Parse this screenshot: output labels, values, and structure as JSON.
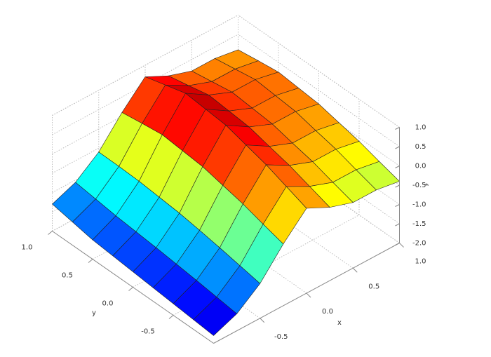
{
  "chart_data": {
    "type": "surface",
    "x_label": "x",
    "y_label": "y",
    "z_label": "f",
    "x": [
      -1,
      -0.75,
      -0.5,
      -0.25,
      0,
      0.25,
      0.5,
      0.75,
      1
    ],
    "y": [
      -1,
      -0.75,
      -0.5,
      -0.25,
      0,
      0.25,
      0.5,
      0.75,
      1
    ],
    "z": [
      [
        -1.8,
        -1.56,
        -1.1,
        -0.4,
        0.2,
        -0.1,
        -0.3,
        -0.3,
        -0.4
      ],
      [
        -1.75,
        -1.49,
        -1.0,
        -0.25,
        0.4,
        0.08,
        -0.14,
        -0.14,
        -0.25
      ],
      [
        -1.7,
        -1.42,
        -0.9,
        -0.09,
        0.6,
        0.26,
        0.03,
        0.03,
        -0.09
      ],
      [
        -1.65,
        -1.36,
        -0.81,
        0.03,
        0.75,
        0.39,
        0.15,
        0.15,
        0.03
      ],
      [
        -1.6,
        -1.3,
        -0.73,
        0.15,
        0.9,
        0.53,
        0.28,
        0.28,
        0.15
      ],
      [
        -1.55,
        -1.25,
        -0.68,
        0.2,
        0.95,
        0.58,
        0.33,
        0.33,
        0.2
      ],
      [
        -1.5,
        -1.2,
        -0.63,
        0.25,
        1.0,
        0.63,
        0.38,
        0.38,
        0.25
      ],
      [
        -1.4,
        -1.13,
        -0.61,
        0.18,
        0.85,
        0.51,
        0.29,
        0.29,
        0.18
      ],
      [
        -1.3,
        -1.06,
        -0.6,
        0.1,
        0.7,
        0.4,
        0.2,
        0.2,
        0.1
      ]
    ],
    "xlim": [
      -1,
      1
    ],
    "ylim": [
      -1,
      1
    ],
    "zlim": [
      -2,
      1
    ],
    "xticks": [
      -0.5,
      {
        "value": 0,
        "label": "0.0"
      },
      0.5,
      {
        "value": 1,
        "label": "1.0"
      }
    ],
    "yticks": [
      -0.5,
      {
        "value": 0,
        "label": "0.0"
      },
      0.5,
      {
        "value": 1,
        "label": "1.0"
      }
    ],
    "zticks": [
      {
        "value": -2,
        "label": "-2.0"
      },
      -1.5,
      {
        "value": -1,
        "label": "-1.0"
      },
      -0.5,
      {
        "value": 0,
        "label": "0.0"
      },
      0.5,
      {
        "value": 1,
        "label": "1.0"
      }
    ],
    "colormap": "jet",
    "grid": true,
    "edge_color": "#222222"
  }
}
